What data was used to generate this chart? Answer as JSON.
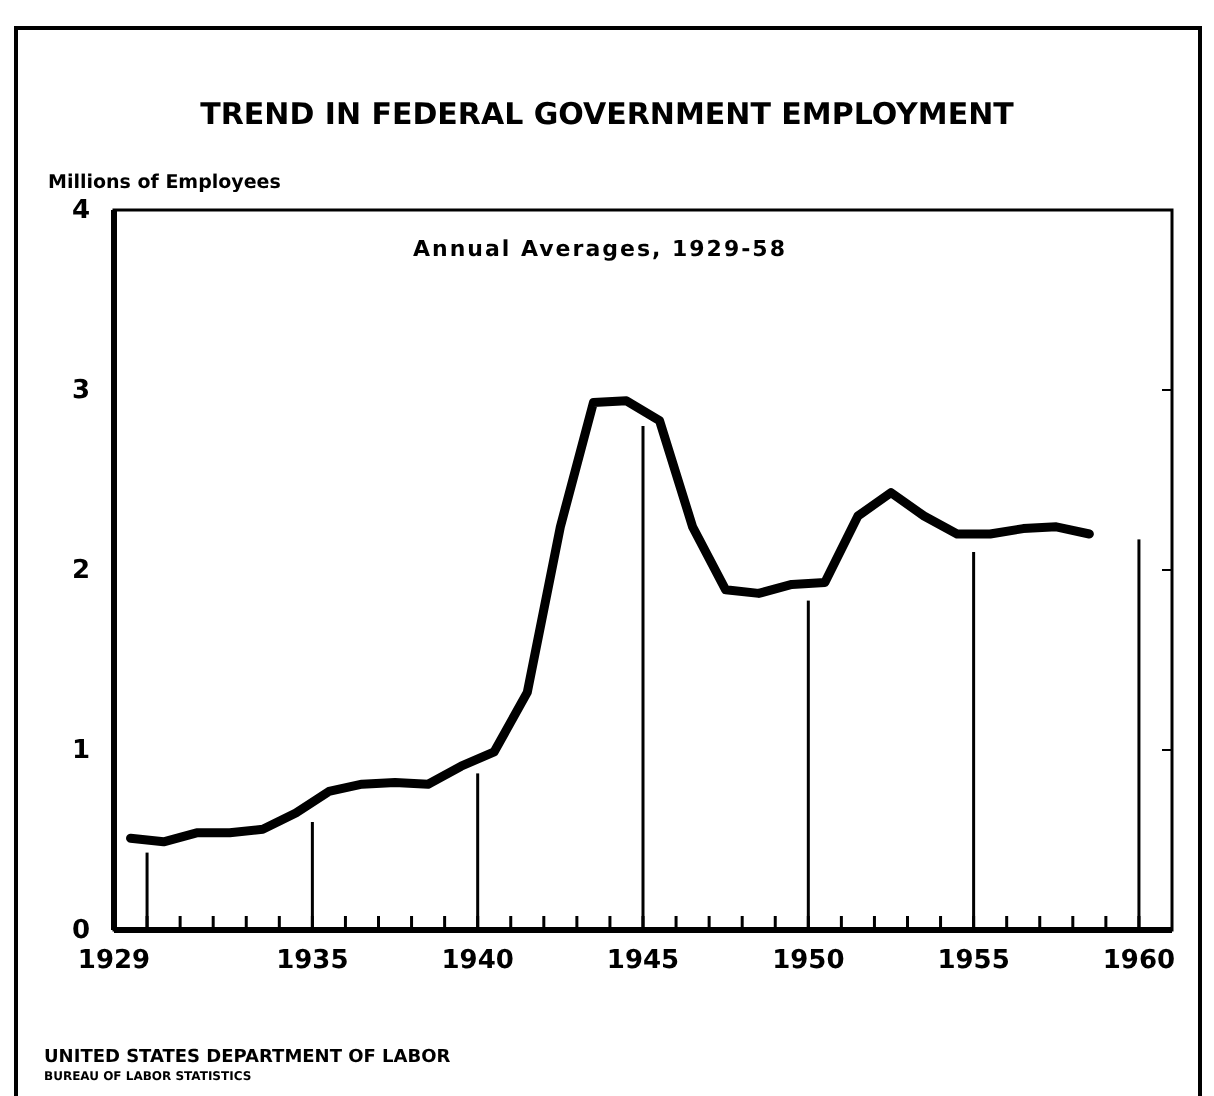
{
  "chart_data": {
    "type": "line",
    "title": "TREND IN FEDERAL GOVERNMENT EMPLOYMENT",
    "subtitle": "Annual Averages, 1929-58",
    "ylabel": "Millions of Employees",
    "annotations": [
      "UNITED STATES DEPARTMENT OF LABOR",
      "BUREAU OF LABOR STATISTICS"
    ],
    "series": [
      {
        "color": "#000000",
        "x": [
          1929.5,
          1930.5,
          1931.5,
          1932.5,
          1933.5,
          1934.5,
          1935.5,
          1936.5,
          1937.5,
          1938.5,
          1939.5,
          1940.5,
          1941.5,
          1942.5,
          1943.5,
          1944.5,
          1945.5,
          1946.5,
          1947.5,
          1948.5,
          1949.5,
          1950.5,
          1951.5,
          1952.5,
          1953.5,
          1954.5,
          1955.5,
          1956.5,
          1957.5,
          1958.5
        ],
        "values": [
          0.51,
          0.49,
          0.54,
          0.54,
          0.56,
          0.65,
          0.77,
          0.81,
          0.82,
          0.81,
          0.91,
          0.99,
          1.32,
          2.24,
          2.93,
          2.94,
          2.83,
          2.24,
          1.89,
          1.87,
          1.92,
          1.93,
          2.3,
          2.43,
          2.3,
          2.2,
          2.2,
          2.23,
          2.24,
          2.2
        ]
      },
      {
        "type": "bar",
        "color": "#000000",
        "x": [
          1930,
          1935,
          1940,
          1945,
          1950,
          1955,
          1960
        ],
        "values": [
          0.43,
          0.6,
          0.87,
          2.8,
          1.83,
          2.1,
          2.17
        ]
      }
    ],
    "xlim": [
      1929,
      1961
    ],
    "xticks": [
      1929,
      {
        "value": 1930,
        "label": null
      },
      {
        "value": 1931,
        "label": null
      },
      {
        "value": 1932,
        "label": null
      },
      {
        "value": 1933,
        "label": null
      },
      {
        "value": 1934,
        "label": null
      },
      1935,
      {
        "value": 1936,
        "label": null
      },
      {
        "value": 1937,
        "label": null
      },
      {
        "value": 1938,
        "label": null
      },
      {
        "value": 1939,
        "label": null
      },
      1940,
      {
        "value": 1941,
        "label": null
      },
      {
        "value": 1942,
        "label": null
      },
      {
        "value": 1943,
        "label": null
      },
      {
        "value": 1944,
        "label": null
      },
      1945,
      {
        "value": 1946,
        "label": null
      },
      {
        "value": 1947,
        "label": null
      },
      {
        "value": 1948,
        "label": null
      },
      {
        "value": 1949,
        "label": null
      },
      1950,
      {
        "value": 1951,
        "label": null
      },
      {
        "value": 1952,
        "label": null
      },
      {
        "value": 1953,
        "label": null
      },
      {
        "value": 1954,
        "label": null
      },
      1955,
      {
        "value": 1956,
        "label": null
      },
      {
        "value": 1957,
        "label": null
      },
      {
        "value": 1958,
        "label": null
      },
      {
        "value": 1959,
        "label": null
      },
      1960
    ],
    "ylim": [
      0,
      4
    ],
    "yticks": [
      0,
      1,
      2,
      3,
      4
    ],
    "grid": false,
    "marker": "none",
    "line_style": "solid"
  }
}
